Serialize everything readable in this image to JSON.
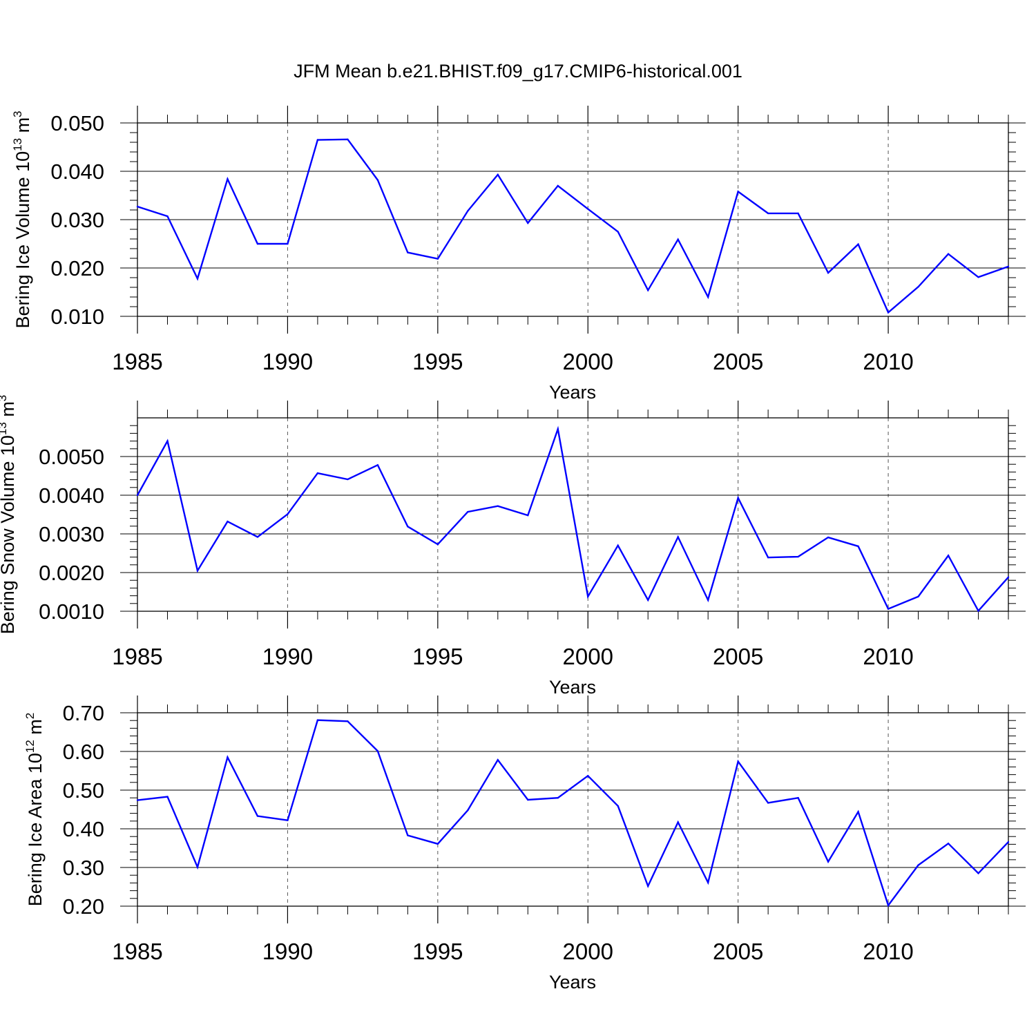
{
  "figure_title": "JFM Mean b.e21.BHIST.f09_g17.CMIP6-historical.001",
  "line_color": "#0000ff",
  "chart_data": [
    {
      "type": "line",
      "ylabel": "Bering Ice Volume",
      "yunit_base": "10",
      "yunit_exp": "13",
      "yunit_unit": "m",
      "yunit_unit_exp": "3",
      "xlabel": "Years",
      "xlim": [
        1985,
        2014
      ],
      "ylim": [
        0.01,
        0.05
      ],
      "yticks": [
        0.01,
        0.02,
        0.03,
        0.04,
        0.05
      ],
      "ytick_labels": [
        "0.010",
        "0.020",
        "0.030",
        "0.040",
        "0.050"
      ],
      "xticks": [
        1985,
        1990,
        1995,
        2000,
        2005,
        2010
      ],
      "xtick_labels": [
        "1985",
        "1990",
        "1995",
        "2000",
        "2005",
        "2010"
      ],
      "grid": "vertical dashed at labeled years",
      "x": [
        1985,
        1986,
        1987,
        1988,
        1989,
        1990,
        1991,
        1992,
        1993,
        1994,
        1995,
        1996,
        1997,
        1998,
        1999,
        2000,
        2001,
        2002,
        2003,
        2004,
        2005,
        2006,
        2007,
        2008,
        2009,
        2010,
        2011,
        2012,
        2013,
        2014
      ],
      "series": [
        {
          "values": [
            0.0327,
            0.0307,
            0.0178,
            0.0384,
            0.025,
            0.025,
            0.0465,
            0.0466,
            0.0382,
            0.0232,
            0.0219,
            0.0318,
            0.0393,
            0.0293,
            0.037,
            0.0322,
            0.0275,
            0.0154,
            0.0259,
            0.014,
            0.0358,
            0.0313,
            0.0313,
            0.019,
            0.0249,
            0.0108,
            0.0161,
            0.0229,
            0.0181,
            0.0203
          ]
        }
      ]
    },
    {
      "type": "line",
      "ylabel": "Bering Snow Volume",
      "yunit_base": "10",
      "yunit_exp": "13",
      "yunit_unit": "m",
      "yunit_unit_exp": "3",
      "xlabel": "Years",
      "xlim": [
        1985,
        2014
      ],
      "ylim": [
        0.001,
        0.006
      ],
      "yticks": [
        0.001,
        0.002,
        0.003,
        0.004,
        0.005
      ],
      "ytick_labels": [
        "0.0010",
        "0.0020",
        "0.0030",
        "0.0040",
        "0.0050"
      ],
      "xticks": [
        1985,
        1990,
        1995,
        2000,
        2005,
        2010
      ],
      "xtick_labels": [
        "1985",
        "1990",
        "1995",
        "2000",
        "2005",
        "2010"
      ],
      "grid": "vertical dashed at labeled years",
      "x": [
        1985,
        1986,
        1987,
        1988,
        1989,
        1990,
        1991,
        1992,
        1993,
        1994,
        1995,
        1996,
        1997,
        1998,
        1999,
        2000,
        2001,
        2002,
        2003,
        2004,
        2005,
        2006,
        2007,
        2008,
        2009,
        2010,
        2011,
        2012,
        2013,
        2014
      ],
      "series": [
        {
          "values": [
            0.004,
            0.0054,
            0.00205,
            0.00332,
            0.00292,
            0.00351,
            0.00457,
            0.00441,
            0.00478,
            0.00319,
            0.00273,
            0.00357,
            0.00372,
            0.00348,
            0.00571,
            0.00138,
            0.0027,
            0.00129,
            0.00292,
            0.00129,
            0.00393,
            0.00239,
            0.00241,
            0.00291,
            0.00268,
            0.00106,
            0.00138,
            0.00244,
            0.00101,
            0.00188
          ]
        }
      ]
    },
    {
      "type": "line",
      "ylabel": "Bering Ice Area",
      "yunit_base": "10",
      "yunit_exp": "12",
      "yunit_unit": "m",
      "yunit_unit_exp": "2",
      "xlabel": "Years",
      "xlim": [
        1985,
        2014
      ],
      "ylim": [
        0.2,
        0.7
      ],
      "yticks": [
        0.2,
        0.3,
        0.4,
        0.5,
        0.6,
        0.7
      ],
      "ytick_labels": [
        "0.20",
        "0.30",
        "0.40",
        "0.50",
        "0.60",
        "0.70"
      ],
      "xticks": [
        1985,
        1990,
        1995,
        2000,
        2005,
        2010
      ],
      "xtick_labels": [
        "1985",
        "1990",
        "1995",
        "2000",
        "2005",
        "2010"
      ],
      "grid": "vertical dashed at labeled years",
      "x": [
        1985,
        1986,
        1987,
        1988,
        1989,
        1990,
        1991,
        1992,
        1993,
        1994,
        1995,
        1996,
        1997,
        1998,
        1999,
        2000,
        2001,
        2002,
        2003,
        2004,
        2005,
        2006,
        2007,
        2008,
        2009,
        2010,
        2011,
        2012,
        2013,
        2014
      ],
      "series": [
        {
          "values": [
            0.474,
            0.483,
            0.301,
            0.585,
            0.433,
            0.422,
            0.681,
            0.678,
            0.601,
            0.383,
            0.361,
            0.448,
            0.578,
            0.475,
            0.48,
            0.537,
            0.459,
            0.252,
            0.417,
            0.261,
            0.574,
            0.467,
            0.48,
            0.315,
            0.444,
            0.202,
            0.306,
            0.362,
            0.285,
            0.366
          ]
        }
      ]
    }
  ]
}
